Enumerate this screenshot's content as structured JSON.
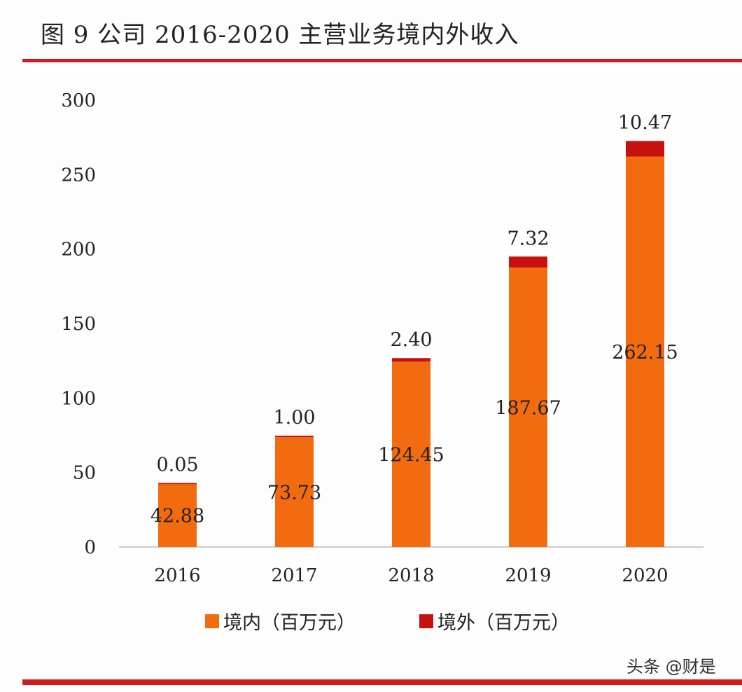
{
  "chart_data": {
    "type": "bar",
    "stacked": true,
    "title": "图 9 公司 2016-2020 主营业务境内外收入",
    "categories": [
      "2016",
      "2017",
      "2018",
      "2019",
      "2020"
    ],
    "series": [
      {
        "name": "境内（百万元）",
        "values": [
          42.88,
          73.73,
          124.45,
          187.67,
          262.15
        ],
        "color": "#f26b0f",
        "labels": [
          "42.88",
          "73.73",
          "124.45",
          "187.67",
          "262.15"
        ]
      },
      {
        "name": "境外（百万元）",
        "values": [
          0.05,
          1.0,
          2.4,
          7.32,
          10.47
        ],
        "color": "#c8100f",
        "labels": [
          "0.05",
          "1.00",
          "2.40",
          "7.32",
          "10.47"
        ]
      }
    ],
    "ylim": [
      0,
      300
    ],
    "yticks": [
      "0",
      "50",
      "100",
      "150",
      "200",
      "250",
      "300"
    ],
    "grid": false,
    "legend": "bottom",
    "xlabel": "",
    "ylabel": ""
  },
  "watermark": "头条 @财是",
  "accent_color": "#d01c1c"
}
